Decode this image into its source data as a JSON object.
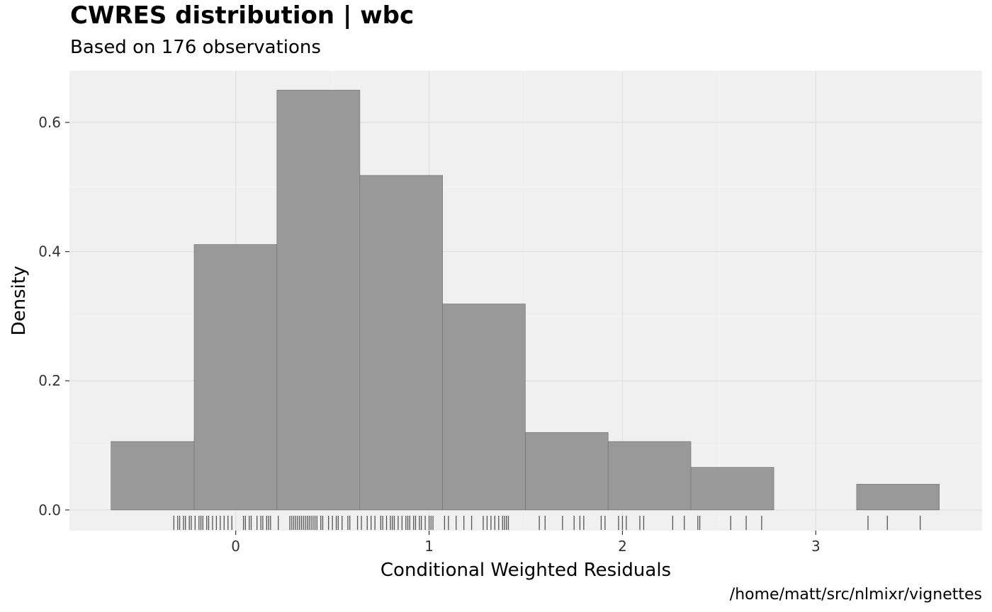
{
  "chart_data": {
    "type": "bar",
    "title": "CWRES distribution | wbc",
    "subtitle": "Based on 176 observations",
    "xlabel": "Conditional Weighted Residuals",
    "ylabel": "Density",
    "caption": "/home/matt/src/nlmixr/vignettes",
    "xlim": [
      -0.86,
      3.86
    ],
    "ylim": [
      -0.032,
      0.68
    ],
    "x_ticks": [
      0,
      1,
      2,
      3
    ],
    "y_ticks": [
      0.0,
      0.2,
      0.4,
      0.6
    ],
    "y_tick_labels": [
      "0.0",
      "0.2",
      "0.4",
      "0.6"
    ],
    "grid": true,
    "bins": [
      {
        "x0": -0.645,
        "x1": -0.215,
        "density": 0.106
      },
      {
        "x0": -0.215,
        "x1": 0.213,
        "density": 0.411
      },
      {
        "x0": 0.213,
        "x1": 0.642,
        "density": 0.65
      },
      {
        "x0": 0.642,
        "x1": 1.07,
        "density": 0.518
      },
      {
        "x0": 1.07,
        "x1": 1.498,
        "density": 0.319
      },
      {
        "x0": 1.498,
        "x1": 1.926,
        "density": 0.12
      },
      {
        "x0": 1.926,
        "x1": 2.354,
        "density": 0.106
      },
      {
        "x0": 2.354,
        "x1": 2.783,
        "density": 0.066
      },
      {
        "x0": 2.783,
        "x1": 3.211,
        "density": 0.0
      },
      {
        "x0": 3.211,
        "x1": 3.639,
        "density": 0.04
      }
    ],
    "rug": [
      -0.32,
      -0.3,
      -0.29,
      -0.27,
      -0.26,
      -0.24,
      -0.23,
      -0.21,
      -0.19,
      -0.18,
      -0.17,
      -0.15,
      -0.14,
      -0.12,
      -0.1,
      -0.08,
      -0.06,
      -0.04,
      -0.02,
      0.04,
      0.05,
      0.07,
      0.08,
      0.11,
      0.13,
      0.14,
      0.16,
      0.17,
      0.18,
      0.22,
      0.28,
      0.29,
      0.3,
      0.31,
      0.32,
      0.33,
      0.34,
      0.35,
      0.36,
      0.37,
      0.38,
      0.39,
      0.4,
      0.41,
      0.42,
      0.44,
      0.45,
      0.48,
      0.5,
      0.52,
      0.53,
      0.55,
      0.58,
      0.59,
      0.63,
      0.65,
      0.68,
      0.7,
      0.72,
      0.75,
      0.76,
      0.78,
      0.8,
      0.81,
      0.82,
      0.84,
      0.86,
      0.88,
      0.89,
      0.9,
      0.92,
      0.93,
      0.95,
      0.96,
      0.98,
      1.0,
      1.01,
      1.02,
      1.08,
      1.1,
      1.14,
      1.18,
      1.22,
      1.28,
      1.3,
      1.32,
      1.34,
      1.36,
      1.38,
      1.39,
      1.4,
      1.41,
      1.57,
      1.6,
      1.69,
      1.75,
      1.78,
      1.8,
      1.89,
      1.91,
      1.98,
      2.0,
      2.02,
      2.09,
      2.11,
      2.26,
      2.32,
      2.39,
      2.4,
      2.56,
      2.64,
      2.72,
      3.27,
      3.37,
      3.54
    ]
  }
}
